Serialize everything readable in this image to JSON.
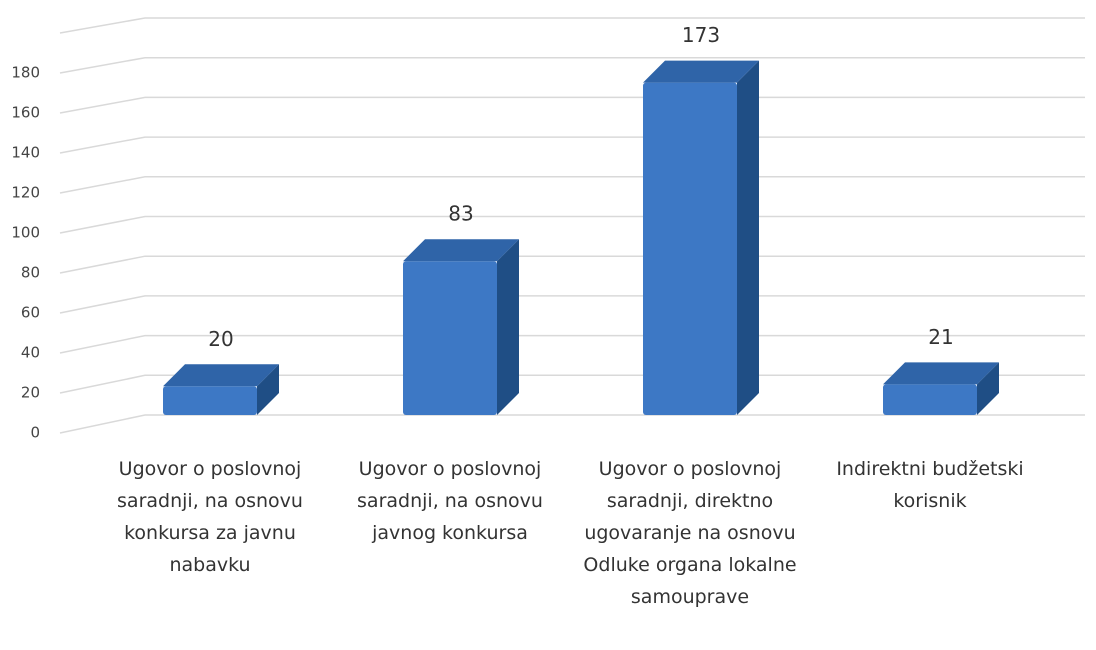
{
  "chart_data": {
    "type": "bar3d",
    "categories": [
      "Ugovor o poslovnoj saradnji, na osnovu konkursa za javnu nabavku",
      "Ugovor o poslovnoj saradnji, na osnovu javnog konkursa",
      "Ugovor o poslovnoj saradnji, direktno ugovaranje na osnovu Odluke organa lokalne samouprave",
      "Indirektni budžetski korisnik"
    ],
    "values": [
      20,
      83,
      173,
      21
    ],
    "color": "#3d78c5",
    "ylim": [
      0,
      200
    ],
    "yticks": [
      0,
      20,
      40,
      60,
      80,
      100,
      120,
      140,
      160,
      180
    ],
    "grid": true
  }
}
